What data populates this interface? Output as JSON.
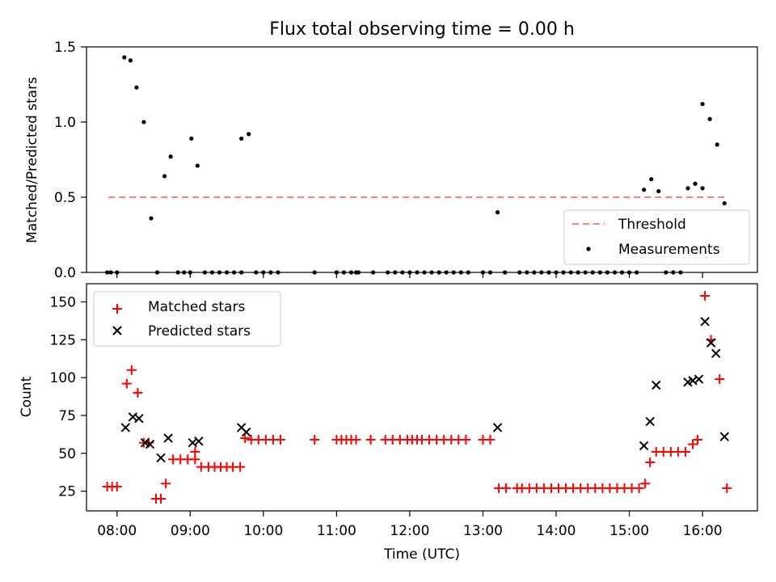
{
  "chart_data": [
    {
      "type": "scatter",
      "title": "Flux total observing time = 0.00 h",
      "xlabel": "",
      "ylabel": "Matched/Predicted stars",
      "xlim": [
        "07:35",
        "16:45"
      ],
      "ylim": [
        0,
        1.5
      ],
      "yticks": [
        "0.0",
        "0.5",
        "1.0",
        "1.5"
      ],
      "threshold": {
        "name": "Threshold",
        "value": 0.5,
        "x_start": "07:53",
        "x_end": "16:18",
        "color": "#ff7f7f"
      },
      "series": [
        {
          "name": "Measurements",
          "color": "#000000",
          "marker": "dot",
          "points": [
            [
              "07:52",
              0
            ],
            [
              "07:55",
              0
            ],
            [
              "08:00",
              0
            ],
            [
              "08:06",
              1.43
            ],
            [
              "08:11",
              1.41
            ],
            [
              "08:16",
              1.23
            ],
            [
              "08:22",
              1.0
            ],
            [
              "08:28",
              0.36
            ],
            [
              "08:33",
              0
            ],
            [
              "08:39",
              0.64
            ],
            [
              "08:44",
              0.77
            ],
            [
              "08:50",
              0
            ],
            [
              "08:55",
              0
            ],
            [
              "09:00",
              0
            ],
            [
              "09:01",
              0.89
            ],
            [
              "09:06",
              0.71
            ],
            [
              "09:12",
              0
            ],
            [
              "09:18",
              0
            ],
            [
              "09:24",
              0
            ],
            [
              "09:30",
              0
            ],
            [
              "09:36",
              0
            ],
            [
              "09:42",
              0
            ],
            [
              "09:42",
              0.89
            ],
            [
              "09:48",
              0.92
            ],
            [
              "09:54",
              0
            ],
            [
              "10:00",
              0
            ],
            [
              "10:06",
              0
            ],
            [
              "10:12",
              0
            ],
            [
              "10:42",
              0
            ],
            [
              "11:00",
              0
            ],
            [
              "11:06",
              0
            ],
            [
              "11:12",
              0
            ],
            [
              "11:16",
              0
            ],
            [
              "11:18",
              0
            ],
            [
              "11:30",
              0
            ],
            [
              "11:42",
              0
            ],
            [
              "11:48",
              0
            ],
            [
              "11:54",
              0
            ],
            [
              "12:00",
              0
            ],
            [
              "12:06",
              0
            ],
            [
              "12:12",
              0
            ],
            [
              "12:18",
              0
            ],
            [
              "12:24",
              0
            ],
            [
              "12:30",
              0
            ],
            [
              "12:36",
              0
            ],
            [
              "12:42",
              0
            ],
            [
              "12:48",
              0
            ],
            [
              "13:00",
              0
            ],
            [
              "13:06",
              0
            ],
            [
              "13:12",
              0.4
            ],
            [
              "13:18",
              0
            ],
            [
              "13:30",
              0
            ],
            [
              "13:36",
              0
            ],
            [
              "13:42",
              0
            ],
            [
              "13:48",
              0
            ],
            [
              "13:54",
              0
            ],
            [
              "14:00",
              0
            ],
            [
              "14:06",
              0
            ],
            [
              "14:12",
              0
            ],
            [
              "14:18",
              0
            ],
            [
              "14:24",
              0
            ],
            [
              "14:30",
              0
            ],
            [
              "14:36",
              0
            ],
            [
              "14:42",
              0
            ],
            [
              "14:48",
              0
            ],
            [
              "14:54",
              0
            ],
            [
              "15:00",
              0
            ],
            [
              "15:06",
              0
            ],
            [
              "15:12",
              0.55
            ],
            [
              "15:18",
              0.62
            ],
            [
              "15:24",
              0.54
            ],
            [
              "15:30",
              0
            ],
            [
              "15:36",
              0
            ],
            [
              "15:42",
              0
            ],
            [
              "15:48",
              0.56
            ],
            [
              "15:54",
              0.59
            ],
            [
              "16:00",
              0.56
            ],
            [
              "16:00",
              1.12
            ],
            [
              "16:06",
              1.02
            ],
            [
              "16:12",
              0.85
            ],
            [
              "16:18",
              0.46
            ]
          ]
        }
      ],
      "legend": {
        "placement": "lower-right",
        "entries": [
          "Threshold",
          "Measurements"
        ]
      }
    },
    {
      "type": "scatter",
      "title": "",
      "xlabel": "Time (UTC)",
      "ylabel": "Count",
      "xlim": [
        "07:35",
        "16:45"
      ],
      "ylim": [
        12,
        162
      ],
      "xticks": [
        "08:00",
        "09:00",
        "10:00",
        "11:00",
        "12:00",
        "13:00",
        "14:00",
        "15:00",
        "16:00"
      ],
      "yticks": [
        "25",
        "50",
        "75",
        "100",
        "125",
        "150"
      ],
      "series": [
        {
          "name": "Matched stars",
          "color": "#ff0000",
          "marker": "plus",
          "points": [
            [
              "07:52",
              28
            ],
            [
              "07:56",
              28
            ],
            [
              "08:00",
              28
            ],
            [
              "08:08",
              96
            ],
            [
              "08:12",
              105
            ],
            [
              "08:17",
              90
            ],
            [
              "08:22",
              57
            ],
            [
              "08:26",
              57
            ],
            [
              "08:32",
              20
            ],
            [
              "08:36",
              20
            ],
            [
              "08:40",
              30
            ],
            [
              "08:46",
              46
            ],
            [
              "08:52",
              46
            ],
            [
              "08:58",
              46
            ],
            [
              "09:04",
              46
            ],
            [
              "09:04",
              51
            ],
            [
              "09:09",
              41
            ],
            [
              "09:15",
              41
            ],
            [
              "09:20",
              41
            ],
            [
              "09:25",
              41
            ],
            [
              "09:30",
              41
            ],
            [
              "09:35",
              41
            ],
            [
              "09:41",
              41
            ],
            [
              "09:45",
              60
            ],
            [
              "09:50",
              59
            ],
            [
              "09:56",
              59
            ],
            [
              "10:02",
              59
            ],
            [
              "10:08",
              59
            ],
            [
              "10:14",
              59
            ],
            [
              "10:42",
              59
            ],
            [
              "11:00",
              59
            ],
            [
              "11:04",
              59
            ],
            [
              "11:08",
              59
            ],
            [
              "11:12",
              59
            ],
            [
              "11:16",
              59
            ],
            [
              "11:28",
              59
            ],
            [
              "11:40",
              59
            ],
            [
              "11:46",
              59
            ],
            [
              "11:52",
              59
            ],
            [
              "11:58",
              59
            ],
            [
              "12:02",
              59
            ],
            [
              "12:06",
              59
            ],
            [
              "12:10",
              59
            ],
            [
              "12:16",
              59
            ],
            [
              "12:22",
              59
            ],
            [
              "12:28",
              59
            ],
            [
              "12:34",
              59
            ],
            [
              "12:40",
              59
            ],
            [
              "12:46",
              59
            ],
            [
              "13:00",
              59
            ],
            [
              "13:06",
              59
            ],
            [
              "13:13",
              27
            ],
            [
              "13:19",
              27
            ],
            [
              "13:28",
              27
            ],
            [
              "13:32",
              27
            ],
            [
              "13:38",
              27
            ],
            [
              "13:44",
              27
            ],
            [
              "13:50",
              27
            ],
            [
              "13:56",
              27
            ],
            [
              "14:02",
              27
            ],
            [
              "14:08",
              27
            ],
            [
              "14:14",
              27
            ],
            [
              "14:20",
              27
            ],
            [
              "14:26",
              27
            ],
            [
              "14:32",
              27
            ],
            [
              "14:38",
              27
            ],
            [
              "14:44",
              27
            ],
            [
              "14:50",
              27
            ],
            [
              "14:56",
              27
            ],
            [
              "15:02",
              27
            ],
            [
              "15:08",
              27
            ],
            [
              "15:13",
              30
            ],
            [
              "15:17",
              44
            ],
            [
              "15:22",
              51
            ],
            [
              "15:28",
              51
            ],
            [
              "15:34",
              51
            ],
            [
              "15:40",
              51
            ],
            [
              "15:46",
              51
            ],
            [
              "15:52",
              56
            ],
            [
              "15:56",
              59
            ],
            [
              "16:02",
              154
            ],
            [
              "16:07",
              125
            ],
            [
              "16:14",
              99
            ],
            [
              "16:20",
              27
            ]
          ]
        },
        {
          "name": "Predicted stars",
          "color": "#000000",
          "marker": "x",
          "points": [
            [
              "08:07",
              67
            ],
            [
              "08:13",
              74
            ],
            [
              "08:18",
              73
            ],
            [
              "08:23",
              57
            ],
            [
              "08:27",
              56
            ],
            [
              "08:36",
              47
            ],
            [
              "08:42",
              60
            ],
            [
              "09:02",
              57
            ],
            [
              "09:07",
              58
            ],
            [
              "09:42",
              67
            ],
            [
              "09:46",
              64
            ],
            [
              "13:12",
              67
            ],
            [
              "15:12",
              55
            ],
            [
              "15:17",
              71
            ],
            [
              "15:22",
              95
            ],
            [
              "15:48",
              97
            ],
            [
              "15:52",
              98
            ],
            [
              "15:57",
              99
            ],
            [
              "16:02",
              137
            ],
            [
              "16:07",
              123
            ],
            [
              "16:11",
              116
            ],
            [
              "16:18",
              61
            ]
          ]
        }
      ],
      "legend": {
        "placement": "upper-left",
        "entries": [
          "Matched stars",
          "Predicted stars"
        ]
      }
    }
  ]
}
